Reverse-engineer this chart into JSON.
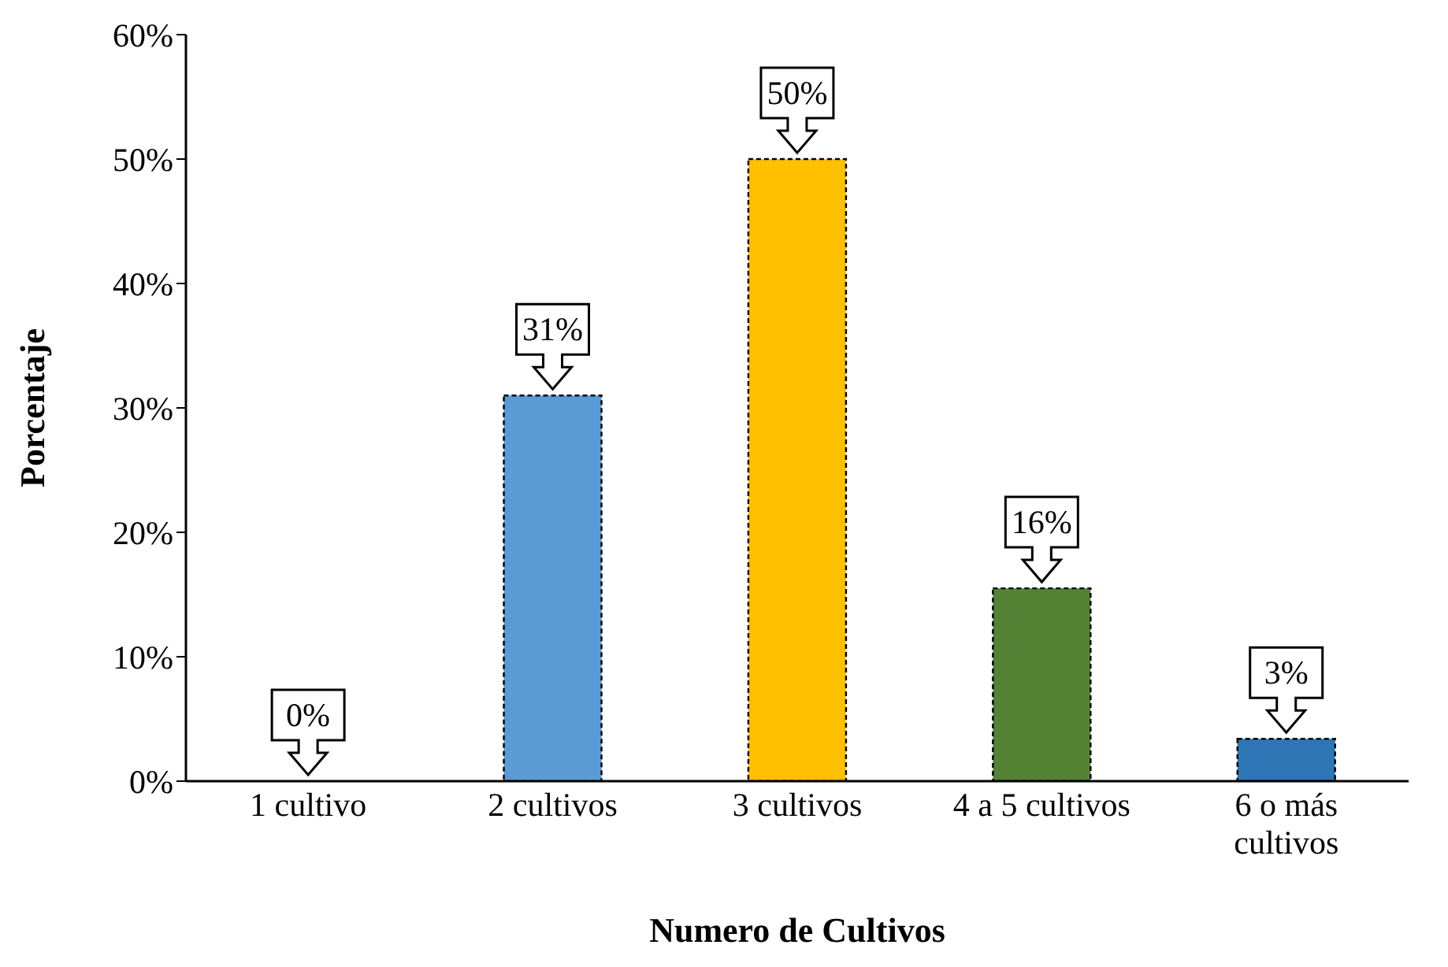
{
  "chart_data": {
    "type": "bar",
    "xlabel": "Numero de Cultivos",
    "ylabel": "Porcentaje",
    "categories": [
      "1 cultivo",
      "2 cultivos",
      "3 cultivos",
      "4 a 5 cultivos",
      "6 o más cultivos"
    ],
    "values": [
      0,
      31,
      50,
      15.5,
      3.4
    ],
    "value_labels": [
      "0%",
      "31%",
      "50%",
      "16%",
      "3%"
    ],
    "colors": [
      "#5b9bd5",
      "#5b9bd5",
      "#ffc000",
      "#548235",
      "#2e75b6"
    ],
    "ylim": [
      0,
      60
    ],
    "yticks": [
      {
        "value": 0,
        "label": "0%"
      },
      {
        "value": 10,
        "label": "10%"
      },
      {
        "value": 20,
        "label": "20%"
      },
      {
        "value": 30,
        "label": "30%"
      },
      {
        "value": 40,
        "label": "40%"
      },
      {
        "value": 50,
        "label": "50%"
      },
      {
        "value": 60,
        "label": "60%"
      }
    ],
    "grid": false,
    "legend": false
  }
}
